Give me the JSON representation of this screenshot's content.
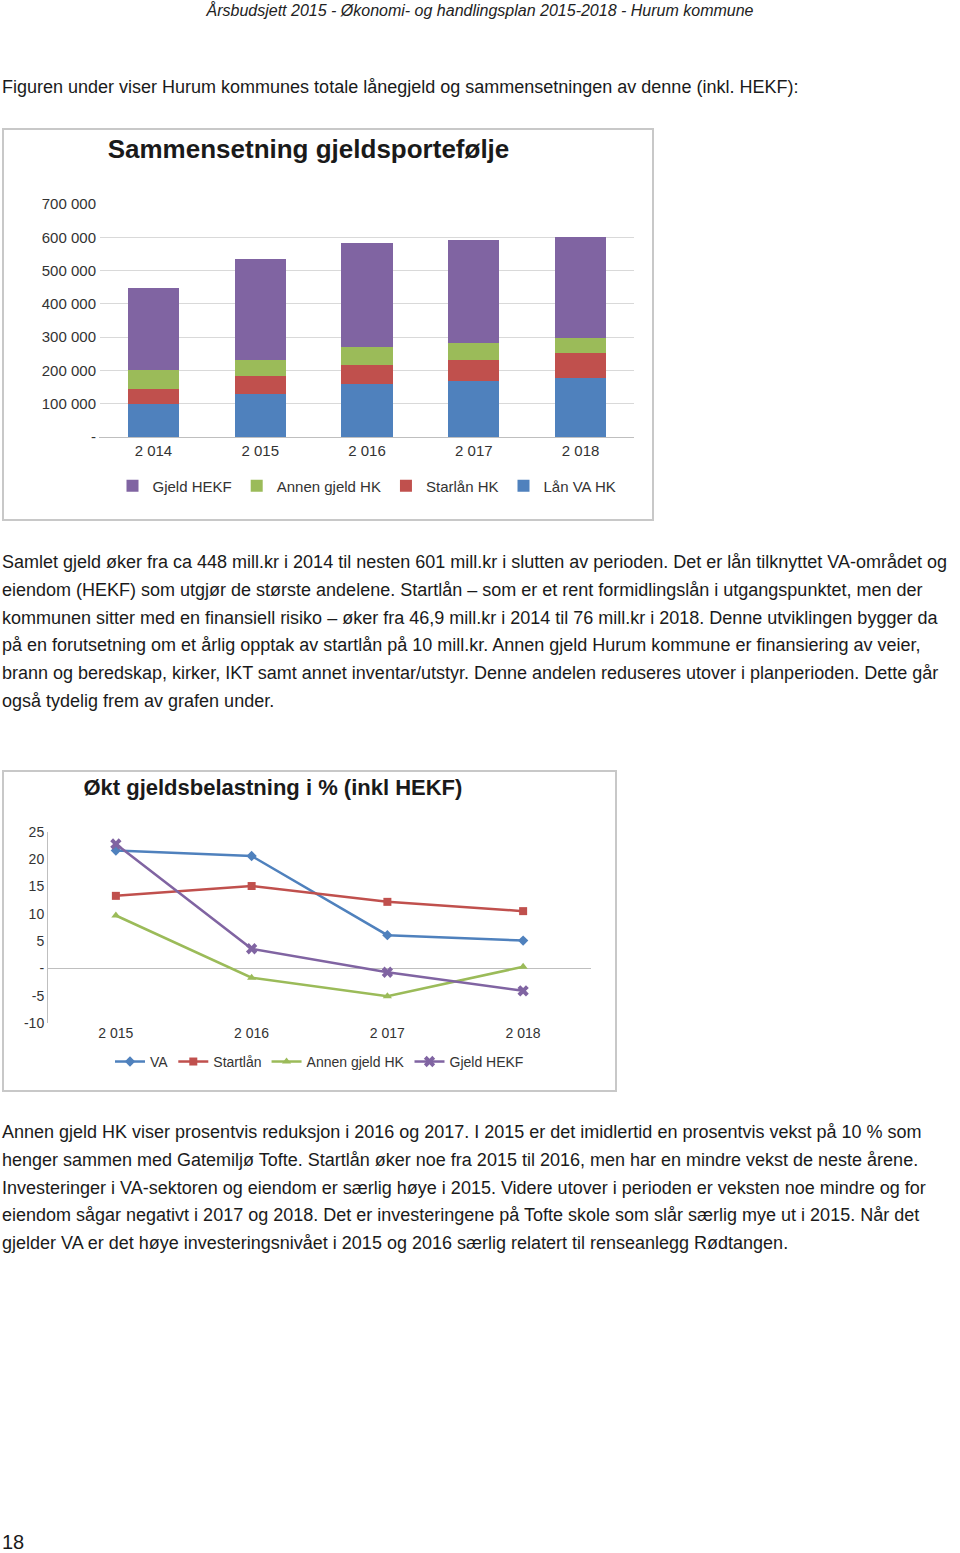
{
  "header": "Årsbudsjett 2015 - Økonomi- og handlingsplan 2015-2018 - Hurum kommune",
  "intro": "Figuren under viser Hurum kommunes totale lånegjeld og sammensetningen av denne (inkl. HEKF):",
  "chart_data": [
    {
      "type": "bar",
      "title": "Sammensetning gjeldsportefølje",
      "stacked": true,
      "grid": true,
      "legend": "bottom",
      "categories": [
        "2 014",
        "2 015",
        "2 016",
        "2 017",
        "2 018"
      ],
      "series": [
        {
          "name": "Lån VA HK",
          "color": "#4f81bd",
          "values": [
            98000,
            130000,
            158000,
            167000,
            176000
          ]
        },
        {
          "name": "Starlån HK",
          "color": "#c0504d",
          "values": [
            47000,
            53000,
            59000,
            65000,
            76000
          ]
        },
        {
          "name": "Annen gjeld HK",
          "color": "#9bbb59",
          "values": [
            55000,
            49000,
            52000,
            50000,
            46000
          ]
        },
        {
          "name": "Gjeld HEKF",
          "color": "#8064a2",
          "values": [
            248000,
            304000,
            313000,
            309000,
            303000
          ]
        }
      ],
      "ylim": [
        0,
        700000
      ],
      "yticks": [
        {
          "value": 0,
          "label": "-"
        },
        {
          "value": 100000,
          "label": "100 000"
        },
        {
          "value": 200000,
          "label": "200 000"
        },
        {
          "value": 300000,
          "label": "300 000"
        },
        {
          "value": 400000,
          "label": "400 000"
        },
        {
          "value": 500000,
          "label": "500 000"
        },
        {
          "value": 600000,
          "label": "600 000"
        },
        {
          "value": 700000,
          "label": "700 000"
        }
      ]
    },
    {
      "type": "line",
      "title": "Økt gjeldsbelastning i % (inkl HEKF)",
      "grid": false,
      "legend": "bottom",
      "categories": [
        "2 015",
        "2 016",
        "2 017",
        "2 018"
      ],
      "series": [
        {
          "name": "VA",
          "color": "#4f81bd",
          "marker": "diamond",
          "values": [
            21.6,
            20.6,
            6.1,
            5.1
          ]
        },
        {
          "name": "Startlån",
          "color": "#c0504d",
          "marker": "square",
          "values": [
            13.3,
            15.1,
            12.2,
            10.5
          ]
        },
        {
          "name": "Annen gjeld HK",
          "color": "#9bbb59",
          "marker": "triangle-up",
          "values": [
            9.7,
            -1.7,
            -5.1,
            0.3
          ]
        },
        {
          "name": "Gjeld HEKF",
          "color": "#8064a2",
          "marker": "x",
          "values": [
            22.8,
            3.6,
            -0.7,
            -4.1
          ]
        }
      ],
      "ylim": [
        -10,
        25
      ],
      "yticks": [
        -10,
        -5,
        {
          "value": 0,
          "label": "-"
        },
        5,
        10,
        15,
        20,
        25
      ]
    }
  ],
  "paragraphs": [
    "Samlet gjeld øker fra ca 448 mill.kr i 2014 til nesten 601 mill.kr i slutten av perioden. Det er lån tilknyttet VA-området og eiendom (HEKF) som utgjør de største andelene. Startlån – som er et rent formidlingslån i utgangspunktet, men der kommunen sitter med en finansiell risiko – øker fra 46,9 mill.kr i 2014 til 76 mill.kr i 2018. Denne utviklingen bygger da på en forutsetning om et årlig opptak av startlån på 10 mill.kr. Annen gjeld Hurum kommune er finansiering av veier, brann og beredskap, kirker, IKT samt annet inventar/utstyr. Denne andelen reduseres utover i planperioden. Dette går også tydelig frem av grafen under.",
    "Annen gjeld HK viser prosentvis reduksjon i 2016 og 2017. I 2015 er det imidlertid en prosentvis vekst på 10 % som henger sammen med Gatemiljø Tofte. Startlån øker noe fra 2015 til 2016, men har en mindre vekst de neste årene. Investeringer i VA-sektoren og eiendom er særlig høye i 2015. Videre utover i perioden er veksten noe mindre og for eiendom sågar negativt i 2017 og 2018. Det er investeringene på Tofte skole som slår særlig mye ut i 2015. Når det gjelder VA er det høye investeringsnivået i 2015 og 2016 særlig relatert til renseanlegg Rødtangen."
  ],
  "page_number": "18"
}
